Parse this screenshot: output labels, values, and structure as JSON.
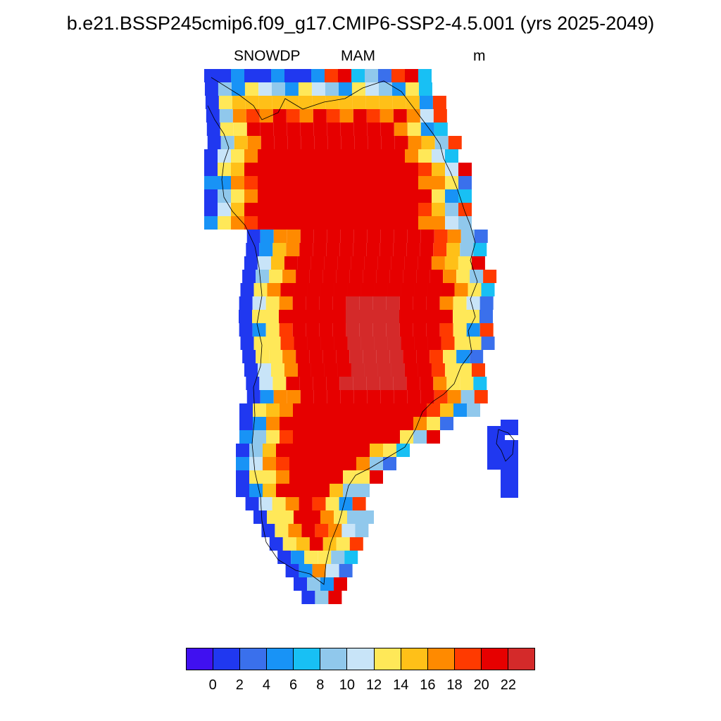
{
  "title": "b.e21.BSSP245cmip6.f09_g17.CMIP6-SSP2-4.5.001 (yrs 2025-2049)",
  "subtitle": {
    "left": "SNOWDP",
    "center": "MAM",
    "right": "m"
  },
  "colorbar": {
    "colors": [
      "#4010f0",
      "#2038f0",
      "#3a70ec",
      "#1893f6",
      "#18c0f4",
      "#90c8ec",
      "#c8e4f8",
      "#ffe858",
      "#ffc018",
      "#ff8a00",
      "#ff3a00",
      "#e60000",
      "#d42a2a"
    ],
    "tick_labels": [
      "0",
      "2",
      "4",
      "6",
      "8",
      "10",
      "12",
      "14",
      "16",
      "18",
      "20",
      "22"
    ]
  }
}
